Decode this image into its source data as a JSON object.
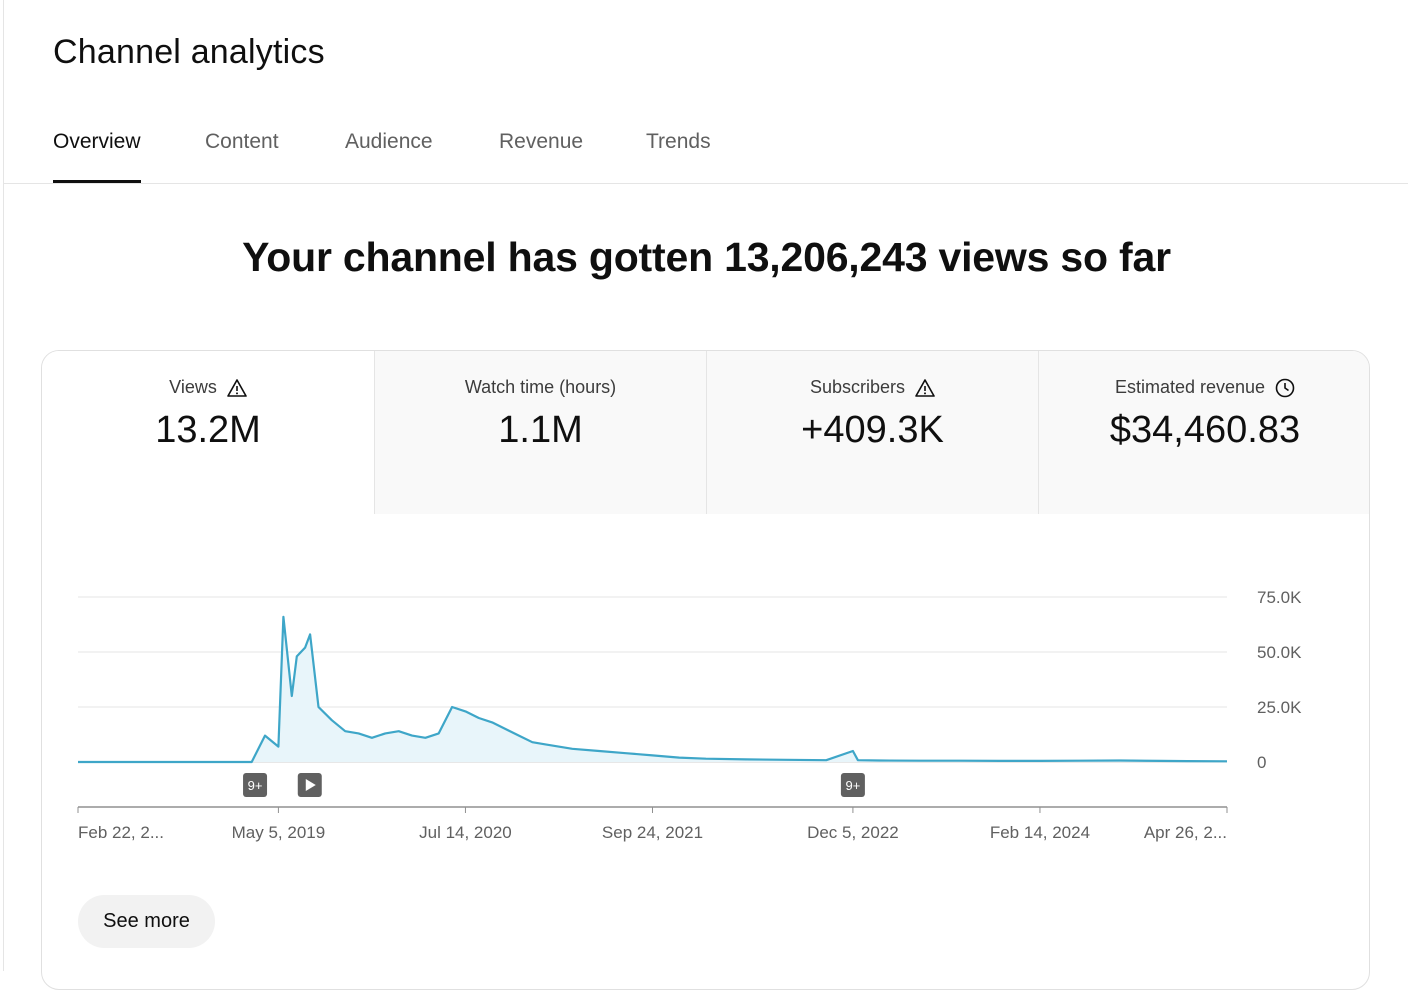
{
  "page_title": "Channel analytics",
  "tabs": [
    {
      "label": "Overview",
      "active": true
    },
    {
      "label": "Content",
      "active": false
    },
    {
      "label": "Audience",
      "active": false
    },
    {
      "label": "Revenue",
      "active": false
    },
    {
      "label": "Trends",
      "active": false
    }
  ],
  "headline": "Your channel has gotten 13,206,243 views so far",
  "metrics": [
    {
      "label": "Views",
      "value": "13.2M",
      "icon": "warning-icon",
      "selected": true
    },
    {
      "label": "Watch time (hours)",
      "value": "1.1M",
      "icon": null,
      "selected": false
    },
    {
      "label": "Subscribers",
      "value": "+409.3K",
      "icon": "warning-icon",
      "selected": false
    },
    {
      "label": "Estimated revenue",
      "value": "$34,460.83",
      "icon": "clock-icon",
      "selected": false
    }
  ],
  "see_more_label": "See more",
  "markers": [
    {
      "label": "9+",
      "date": "Apr 2019"
    },
    {
      "label": "▶",
      "date": "Jun 2019",
      "icon": "play-icon"
    },
    {
      "label": "9+",
      "date": "Dec 2022"
    }
  ],
  "colors": {
    "line": "#3ea6c8",
    "fill": "#e8f5fa",
    "marker_bg": "#606060"
  },
  "chart_data": {
    "type": "area",
    "series": [
      {
        "x": [
          "Feb 2018",
          "Jun 2018",
          "Oct 2018",
          "Jan 2019",
          "Mar 2019",
          "Apr 2019",
          "May 2019",
          "May 2019",
          "Jun 2019",
          "Jun 2019",
          "Jul 2019",
          "Jul 2019",
          "Aug 2019",
          "Sep 2019",
          "Oct 2019",
          "Nov 2019",
          "Dec 2019",
          "Jan 2020",
          "Feb 2020",
          "Mar 2020",
          "Apr 2020",
          "May 2020",
          "Jun 2020",
          "Jul 2020",
          "Aug 2020",
          "Sep 2020",
          "Oct 2020",
          "Nov 2020",
          "Dec 2020",
          "Jan 2021",
          "Mar 2021",
          "May 2021",
          "Jul 2021",
          "Sep 2021",
          "Nov 2021",
          "Jan 2022",
          "Apr 2022",
          "Jul 2022",
          "Oct 2022",
          "Dec 2022",
          "Dec 2022",
          "Feb 2023",
          "May 2023",
          "Aug 2023",
          "Nov 2023",
          "Feb 2024",
          "May 2024",
          "Aug 2024",
          "Nov 2024",
          "Jan 2025",
          "Apr 2025"
        ],
        "y": [
          0,
          0,
          0,
          0,
          0,
          12000,
          7000,
          66000,
          30000,
          48000,
          52000,
          58000,
          25000,
          19000,
          14000,
          13000,
          11000,
          13000,
          14000,
          12000,
          11000,
          13000,
          25000,
          23000,
          20000,
          18000,
          15000,
          12000,
          9000,
          8000,
          6000,
          5000,
          4000,
          3000,
          2000,
          1500,
          1200,
          1000,
          800,
          5000,
          800,
          700,
          600,
          600,
          500,
          500,
          600,
          700,
          500,
          400,
          300
        ]
      }
    ],
    "xlabel": "",
    "ylabel": "",
    "x_ticks": [
      "Feb 22, 2...",
      "May 5, 2019",
      "Jul 14, 2020",
      "Sep 24, 2021",
      "Dec 5, 2022",
      "Feb 14, 2024",
      "Apr 26, 2..."
    ],
    "y_ticks": [
      "0",
      "25.0K",
      "50.0K",
      "75.0K"
    ],
    "ylim": [
      0,
      75000
    ],
    "grid": true
  }
}
